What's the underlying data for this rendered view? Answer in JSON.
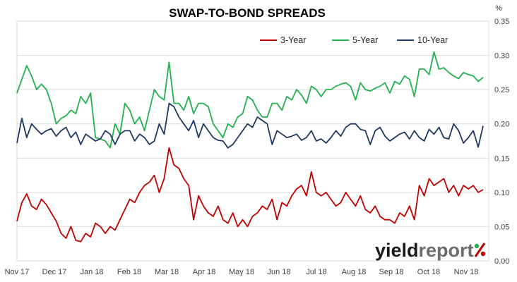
{
  "chart_data": {
    "type": "line",
    "title": "SWAP-TO-BOND SPREADS",
    "y_unit": "%",
    "ylim": [
      0,
      0.35
    ],
    "y_ticks": [
      "0.00",
      "0.05",
      "0.10",
      "0.15",
      "0.20",
      "0.25",
      "0.30",
      "0.35"
    ],
    "x_tick_labels": [
      "Nov 17",
      "Dec 17",
      "Jan 18",
      "Feb 18",
      "Mar 18",
      "Apr 18",
      "May 18",
      "Jun 18",
      "Jul 18",
      "Aug 18",
      "Sep 18",
      "Oct 18",
      "Nov 18"
    ],
    "grid": true,
    "legend_position": "top-right",
    "x": [
      0,
      4,
      8,
      12,
      16,
      20,
      24,
      28,
      32,
      36,
      40,
      44,
      48,
      52,
      56,
      60,
      64,
      68,
      72,
      76,
      80,
      84,
      88,
      92,
      96,
      100,
      104,
      108,
      112,
      116,
      120,
      124,
      128,
      132,
      136,
      140,
      144,
      148,
      152,
      156,
      160,
      164,
      168,
      172,
      176,
      180,
      184,
      188,
      192,
      196,
      200,
      204,
      208,
      212,
      216,
      220,
      224,
      228,
      232,
      236,
      240,
      244,
      248,
      252,
      256,
      260,
      264,
      268,
      272,
      276,
      280,
      284,
      288,
      292,
      296,
      300,
      304,
      308,
      312,
      316,
      320,
      324,
      328,
      332,
      336,
      340,
      344,
      348,
      352,
      356,
      360,
      364,
      368,
      372,
      376,
      380
    ],
    "series": [
      {
        "name": "3-Year",
        "color": "#c00000",
        "values": [
          0.058,
          0.085,
          0.098,
          0.08,
          0.075,
          0.09,
          0.082,
          0.07,
          0.058,
          0.04,
          0.033,
          0.05,
          0.03,
          0.028,
          0.04,
          0.035,
          0.055,
          0.05,
          0.04,
          0.05,
          0.045,
          0.06,
          0.075,
          0.09,
          0.085,
          0.1,
          0.11,
          0.115,
          0.125,
          0.1,
          0.12,
          0.165,
          0.14,
          0.135,
          0.12,
          0.11,
          0.06,
          0.095,
          0.08,
          0.07,
          0.065,
          0.08,
          0.06,
          0.055,
          0.07,
          0.05,
          0.06,
          0.05,
          0.065,
          0.07,
          0.08,
          0.075,
          0.09,
          0.06,
          0.085,
          0.08,
          0.095,
          0.105,
          0.11,
          0.095,
          0.13,
          0.1,
          0.095,
          0.1,
          0.09,
          0.08,
          0.085,
          0.1,
          0.09,
          0.08,
          0.095,
          0.075,
          0.07,
          0.08,
          0.065,
          0.06,
          0.06,
          0.055,
          0.07,
          0.065,
          0.08,
          0.06,
          0.11,
          0.095,
          0.12,
          0.11,
          0.115,
          0.12,
          0.1,
          0.11,
          0.095,
          0.11,
          0.105,
          0.11,
          0.1,
          0.104
        ]
      },
      {
        "name": "5-Year",
        "color": "#22b14c",
        "values": [
          0.245,
          0.265,
          0.285,
          0.27,
          0.25,
          0.258,
          0.25,
          0.23,
          0.2,
          0.208,
          0.212,
          0.22,
          0.215,
          0.24,
          0.23,
          0.245,
          0.18,
          0.178,
          0.175,
          0.165,
          0.2,
          0.185,
          0.23,
          0.22,
          0.2,
          0.21,
          0.19,
          0.22,
          0.25,
          0.24,
          0.235,
          0.29,
          0.23,
          0.23,
          0.22,
          0.24,
          0.215,
          0.23,
          0.23,
          0.225,
          0.2,
          0.19,
          0.18,
          0.2,
          0.195,
          0.21,
          0.215,
          0.24,
          0.235,
          0.22,
          0.21,
          0.21,
          0.23,
          0.23,
          0.22,
          0.24,
          0.235,
          0.25,
          0.242,
          0.23,
          0.255,
          0.25,
          0.24,
          0.25,
          0.25,
          0.255,
          0.258,
          0.26,
          0.255,
          0.235,
          0.26,
          0.25,
          0.248,
          0.252,
          0.255,
          0.26,
          0.245,
          0.262,
          0.258,
          0.27,
          0.265,
          0.24,
          0.28,
          0.28,
          0.272,
          0.305,
          0.28,
          0.282,
          0.275,
          0.27,
          0.266,
          0.275,
          0.272,
          0.27,
          0.262,
          0.268
        ]
      },
      {
        "name": "10-Year",
        "color": "#1f3864",
        "values": [
          0.172,
          0.208,
          0.18,
          0.2,
          0.192,
          0.185,
          0.19,
          0.193,
          0.182,
          0.19,
          0.195,
          0.18,
          0.188,
          0.17,
          0.185,
          0.18,
          0.175,
          0.178,
          0.19,
          0.185,
          0.17,
          0.185,
          0.19,
          0.19,
          0.175,
          0.185,
          0.18,
          0.17,
          0.175,
          0.2,
          0.185,
          0.23,
          0.225,
          0.21,
          0.2,
          0.19,
          0.205,
          0.18,
          0.2,
          0.19,
          0.18,
          0.176,
          0.175,
          0.165,
          0.17,
          0.18,
          0.19,
          0.2,
          0.195,
          0.21,
          0.205,
          0.2,
          0.17,
          0.19,
          0.185,
          0.18,
          0.182,
          0.185,
          0.176,
          0.18,
          0.19,
          0.175,
          0.178,
          0.172,
          0.18,
          0.19,
          0.182,
          0.195,
          0.2,
          0.2,
          0.192,
          0.19,
          0.17,
          0.19,
          0.195,
          0.182,
          0.175,
          0.18,
          0.185,
          0.188,
          0.178,
          0.19,
          0.18,
          0.175,
          0.192,
          0.185,
          0.195,
          0.18,
          0.178,
          0.2,
          0.19,
          0.172,
          0.18,
          0.19,
          0.166,
          0.197
        ]
      }
    ]
  },
  "branding": {
    "logo_word": "yield",
    "logo_word2": "report",
    "logo_symbol": "%",
    "logo_colors": {
      "text_dark": "#1a1a1a",
      "text_gray": "#6d6d6d",
      "red": "#c00000",
      "green": "#22b14c"
    }
  }
}
